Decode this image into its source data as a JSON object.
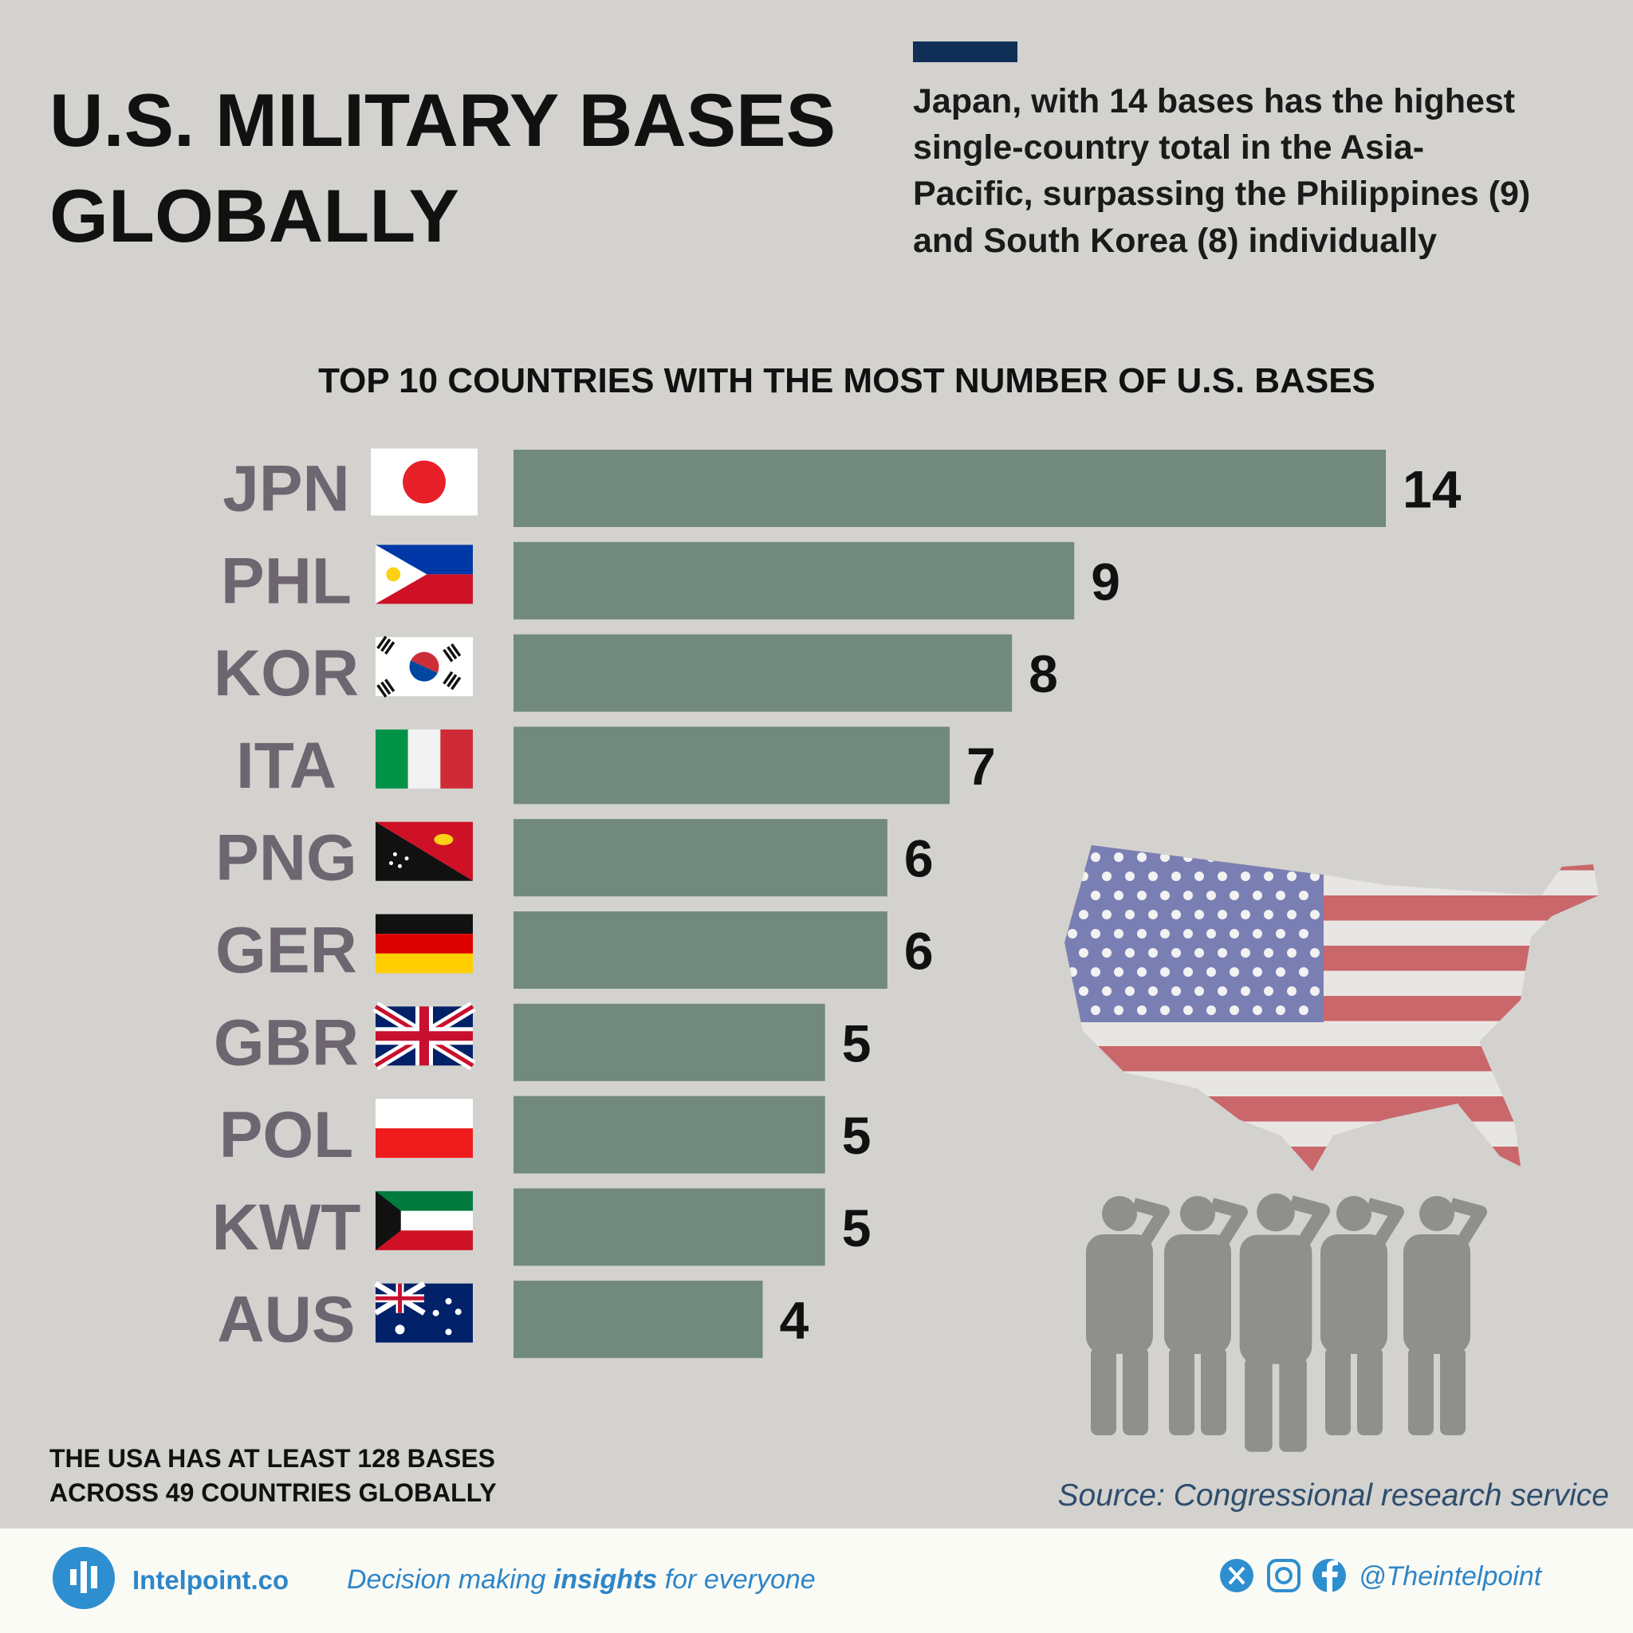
{
  "title_lines": [
    "U.S. MILITARY BASES",
    "GLOBALLY"
  ],
  "annotation_lines": [
    "Japan, with 14 bases has the highest",
    "single-country total in the Asia-",
    "Pacific, surpassing the Philippines (9)",
    "and South Korea (8) individually"
  ],
  "chart_data": {
    "type": "bar",
    "orientation": "horizontal",
    "title": "TOP 10 COUNTRIES WITH THE MOST NUMBER OF U.S. BASES",
    "categories": [
      "JPN",
      "PHL",
      "KOR",
      "ITA",
      "PNG",
      "GER",
      "GBR",
      "POL",
      "KWT",
      "AUS"
    ],
    "values": [
      14,
      9,
      8,
      7,
      6,
      6,
      5,
      5,
      5,
      4
    ],
    "color": "#72897e",
    "xlim": [
      0,
      14
    ]
  },
  "note_lines": [
    "THE USA HAS AT LEAST 128 BASES",
    "ACROSS 49 COUNTRIES GLOBALLY"
  ],
  "source": "Source: Congressional research service",
  "footer": {
    "brand": "Intelpoint.co",
    "tagline": [
      "Decision making",
      "insights",
      "for everyone"
    ],
    "handle": "@Theintelpoint"
  }
}
